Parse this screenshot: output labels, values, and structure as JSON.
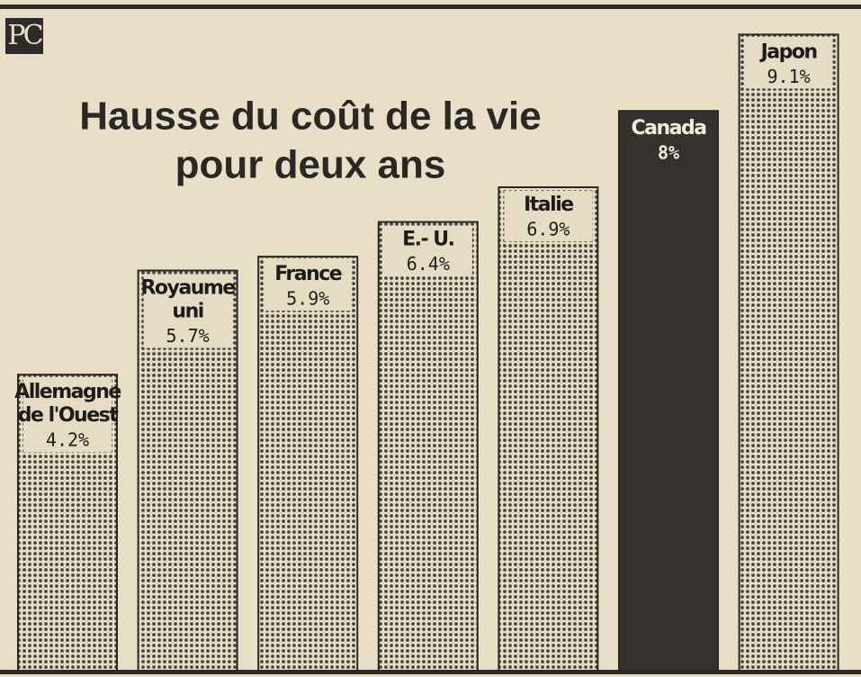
{
  "chart_data": {
    "type": "bar",
    "logo": "PC",
    "title": [
      "Hausse du coût de la vie",
      "pour deux ans"
    ],
    "categories": [
      [
        "Allemagne",
        "de l'Ouest"
      ],
      [
        "Royaume",
        "uni"
      ],
      [
        "France"
      ],
      [
        "E.- U."
      ],
      [
        "Italie"
      ],
      [
        "Canada"
      ],
      [
        "Japon"
      ]
    ],
    "values": [
      4.2,
      5.7,
      5.9,
      6.4,
      6.9,
      8,
      9.1
    ],
    "value_labels": [
      "4.2%",
      "5.7%",
      "5.9%",
      "6.4%",
      "6.9%",
      "8%",
      "9.1%"
    ],
    "colors": [
      "#e6dcc4",
      "#e6dcc4",
      "#e6dcc4",
      "#e6dcc4",
      "#e6dcc4",
      "#35322e",
      "#e6dcc4"
    ],
    "stippled": [
      true,
      true,
      true,
      true,
      true,
      false,
      true
    ]
  }
}
